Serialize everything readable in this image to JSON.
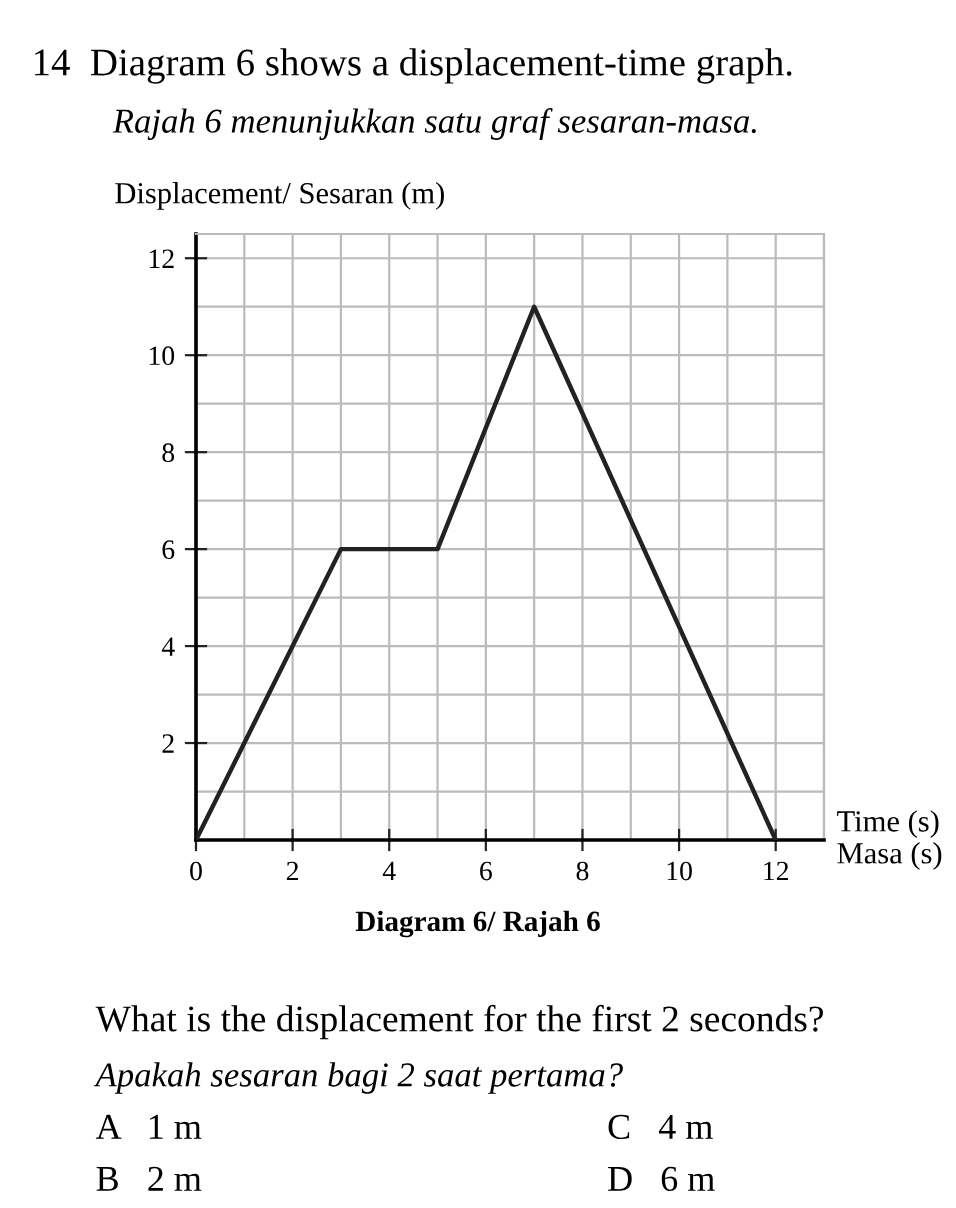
{
  "chart_data": {
    "type": "line",
    "title": "14  Diagram 6 shows a displacement-time graph.",
    "subtitle": "Rajah 6 menunjukkan satu graf sesaran-masa.",
    "ylabel": "Displacement/ Sesaran (m)",
    "xlabel": "Time (s)\nMasa (s)",
    "x": [
      0,
      3,
      5,
      7,
      12
    ],
    "series": [
      {
        "color": "#222222",
        "values": [
          0,
          6,
          6,
          11,
          0
        ]
      }
    ],
    "xlim": [
      0,
      13
    ],
    "ylim": [
      0,
      12.5
    ],
    "xticks": [
      0,
      2,
      4,
      6,
      8,
      10,
      12
    ],
    "yticks": [
      2,
      4,
      6,
      8,
      10,
      12
    ],
    "grid": true,
    "legend": false,
    "marker": "none",
    "line_style": "solid",
    "annotations": [
      "Diagram 6/ Rajah 6",
      "What is the displacement for the first 2 seconds?",
      "Apakah sesaran bagi 2 saat pertama?",
      "A   1 m",
      "C   4 m",
      "B   2 m",
      "D   6 m"
    ]
  }
}
